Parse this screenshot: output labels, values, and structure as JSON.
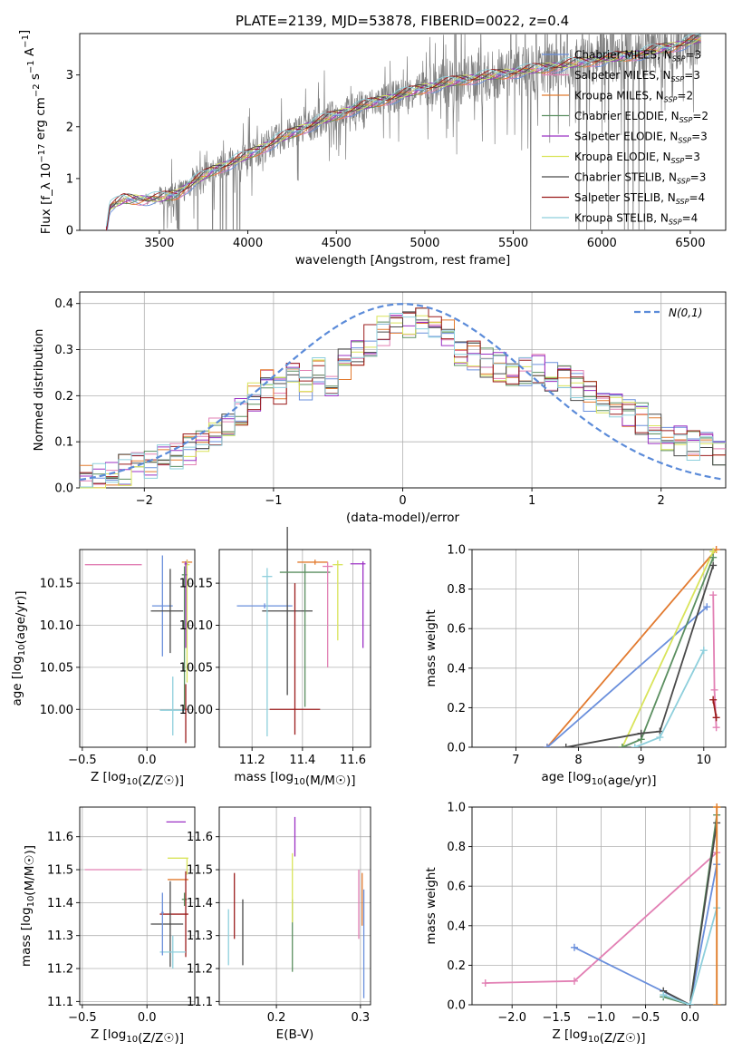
{
  "figure_title": "PLATE=2139, MJD=53878, FIBERID=0022, z=0.4",
  "colors": {
    "Chabrier MILES": "#6a8fdc",
    "Salpeter MILES": "#e280b4",
    "Kroupa MILES": "#e27a2f",
    "Chabrier ELODIE": "#5b8f60",
    "Salpeter ELODIE": "#9b30c4",
    "Kroupa ELODIE": "#d9e45a",
    "Chabrier STELIB": "#4a4a4a",
    "Salpeter STELIB": "#9b1c1c",
    "Kroupa STELIB": "#8ecfdc",
    "data": "#808080"
  },
  "chart_data": [
    {
      "id": "spectrum",
      "type": "line",
      "title": "PLATE=2139, MJD=53878, FIBERID=0022, z=0.4",
      "xlabel": "wavelength [Angstrom, rest frame]",
      "ylabel": "Flux [f_λ 10^-17 erg cm^-2 s^-1 A^-1]",
      "xlim": [
        3050,
        6700
      ],
      "ylim": [
        0,
        3.8
      ],
      "xticks": [
        "3500",
        "4000",
        "4500",
        "5000",
        "5500",
        "6000",
        "6500"
      ],
      "yticks": [
        "0",
        "1",
        "2",
        "3"
      ],
      "grid": false,
      "legend_position": "top-right",
      "legend": [
        {
          "name": "Chabrier MILES",
          "sub": "3"
        },
        {
          "name": "Salpeter MILES",
          "sub": "3"
        },
        {
          "name": "Kroupa MILES",
          "sub": "2"
        },
        {
          "name": "Chabrier ELODIE",
          "sub": "2"
        },
        {
          "name": "Salpeter ELODIE",
          "sub": "3"
        },
        {
          "name": "Kroupa ELODIE",
          "sub": "3"
        },
        {
          "name": "Chabrier STELIB",
          "sub": "3"
        },
        {
          "name": "Salpeter STELIB",
          "sub": "4"
        },
        {
          "name": "Kroupa STELIB",
          "sub": "4"
        }
      ],
      "continuum": [
        [
          3200,
          0.0
        ],
        [
          3220,
          0.45
        ],
        [
          3300,
          0.6
        ],
        [
          3400,
          0.6
        ],
        [
          3500,
          0.62
        ],
        [
          3600,
          0.7
        ],
        [
          3700,
          0.95
        ],
        [
          3800,
          1.15
        ],
        [
          3900,
          1.3
        ],
        [
          4000,
          1.45
        ],
        [
          4200,
          1.8
        ],
        [
          4400,
          2.1
        ],
        [
          4600,
          2.35
        ],
        [
          4800,
          2.55
        ],
        [
          5000,
          2.75
        ],
        [
          5200,
          2.9
        ],
        [
          5400,
          3.0
        ],
        [
          5600,
          3.1
        ],
        [
          5800,
          3.2
        ],
        [
          6000,
          3.3
        ],
        [
          6200,
          3.4
        ],
        [
          6400,
          3.55
        ],
        [
          6550,
          3.7
        ]
      ]
    },
    {
      "id": "residuals",
      "type": "step",
      "xlabel": "(data-model)/error",
      "ylabel": "Normed distribution",
      "xlim": [
        -2.5,
        2.5
      ],
      "ylim": [
        0,
        0.425
      ],
      "xticks": [
        "-2",
        "-1",
        "0",
        "1",
        "2"
      ],
      "yticks": [
        "0.0",
        "0.1",
        "0.2",
        "0.3",
        "0.4"
      ],
      "grid": true,
      "legend_position": "top-right",
      "reference_label": "N(0,1)",
      "bins": [
        -2.5,
        -2.4,
        -2.3,
        -2.2,
        -2.1,
        -2.0,
        -1.9,
        -1.8,
        -1.7,
        -1.6,
        -1.5,
        -1.4,
        -1.3,
        -1.2,
        -1.1,
        -1.0,
        -0.9,
        -0.8,
        -0.7,
        -0.6,
        -0.5,
        -0.4,
        -0.3,
        -0.2,
        -0.1,
        0.0,
        0.1,
        0.2,
        0.3,
        0.4,
        0.5,
        0.6,
        0.7,
        0.8,
        0.9,
        1.0,
        1.1,
        1.2,
        1.3,
        1.4,
        1.5,
        1.6,
        1.7,
        1.8,
        1.9,
        2.0,
        2.1,
        2.2,
        2.3,
        2.4
      ],
      "mean_values": [
        0.02,
        0.025,
        0.03,
        0.04,
        0.045,
        0.05,
        0.06,
        0.07,
        0.085,
        0.1,
        0.12,
        0.14,
        0.17,
        0.2,
        0.23,
        0.21,
        0.24,
        0.22,
        0.25,
        0.22,
        0.27,
        0.3,
        0.32,
        0.34,
        0.35,
        0.36,
        0.37,
        0.35,
        0.33,
        0.3,
        0.29,
        0.27,
        0.26,
        0.24,
        0.25,
        0.26,
        0.24,
        0.23,
        0.22,
        0.2,
        0.19,
        0.18,
        0.16,
        0.15,
        0.13,
        0.11,
        0.1,
        0.09,
        0.085,
        0.08
      ]
    },
    {
      "id": "age-vs-Z",
      "type": "scatter",
      "xlabel": "Z [log10(Z/Z☉)]",
      "ylabel": "age  [log10(age/yr)]",
      "xlim": [
        -0.52,
        0.37
      ],
      "ylim": [
        9.955,
        10.19
      ],
      "xticks": [
        "-0.5",
        "0.0",
        "0.5"
      ],
      "yticks": [
        "10.00",
        "10.05",
        "10.10",
        "10.15"
      ],
      "grid": true,
      "points": [
        {
          "sed": "Salpeter MILES",
          "x": -0.05,
          "xerr": [
            0.43,
            0.01
          ],
          "y": 10.172,
          "yerr": [
            0,
            0
          ]
        },
        {
          "sed": "Chabrier MILES",
          "x": 0.12,
          "xerr": [
            0.08,
            0.08
          ],
          "y": 10.123,
          "yerr": [
            0.06,
            0.06
          ]
        },
        {
          "sed": "Chabrier STELIB",
          "x": 0.18,
          "xerr": [
            0.15,
            0.1
          ],
          "y": 10.117,
          "yerr": [
            0.05,
            0.05
          ]
        },
        {
          "sed": "Kroupa MILES",
          "x": 0.31,
          "xerr": [
            0.04,
            0.04
          ],
          "y": 10.175,
          "yerr": [
            0.003,
            0.003
          ]
        },
        {
          "sed": "Kroupa ELODIE",
          "x": 0.31,
          "xerr": [
            0.02,
            0.02
          ],
          "y": 10.172,
          "yerr": [
            0.14,
            0.005
          ]
        },
        {
          "sed": "Chabrier ELODIE",
          "x": 0.29,
          "xerr": [
            0.02,
            0.02
          ],
          "y": 10.16,
          "yerr": [
            0.16,
            0.01
          ]
        },
        {
          "sed": "Salpeter ELODIE",
          "x": 0.3,
          "xerr": [
            0.01,
            0.01
          ],
          "y": 10.173,
          "yerr": [
            0.1,
            0.003
          ]
        },
        {
          "sed": "Kroupa STELIB",
          "x": 0.2,
          "xerr": [
            0.1,
            0.1
          ],
          "y": 9.999,
          "yerr": [
            0.03,
            0.04
          ]
        },
        {
          "sed": "Salpeter STELIB",
          "x": 0.3,
          "xerr": [
            0.01,
            0.01
          ],
          "y": 10.0,
          "yerr": [
            0.04,
            0.03
          ]
        }
      ]
    },
    {
      "id": "age-vs-mass",
      "type": "scatter",
      "xlabel": "mass [log10(M/M☉)]",
      "ylabel": "",
      "xlim": [
        11.07,
        11.67
      ],
      "ylim": [
        9.955,
        10.19
      ],
      "xticks": [
        "11.2",
        "11.4",
        "11.6"
      ],
      "yticks": [
        "10.00",
        "10.05",
        "10.10",
        "10.15"
      ],
      "grid": true,
      "points": [
        {
          "sed": "Chabrier MILES",
          "x": 11.25,
          "xerr": [
            0.11,
            0.11
          ],
          "y": 10.123,
          "yerr": [
            0.003,
            0.003
          ]
        },
        {
          "sed": "Chabrier STELIB",
          "x": 11.34,
          "xerr": [
            0.1,
            0.1
          ],
          "y": 10.117,
          "yerr": [
            0.1,
            0.1
          ]
        },
        {
          "sed": "Kroupa STELIB",
          "x": 11.26,
          "xerr": [
            0.02,
            0.02
          ],
          "y": 10.158,
          "yerr": [
            0.19,
            0.01
          ]
        },
        {
          "sed": "Chabrier ELODIE",
          "x": 11.41,
          "xerr": [
            0.1,
            0.1
          ],
          "y": 10.163,
          "yerr": [
            0.16,
            0.01
          ]
        },
        {
          "sed": "Salpeter STELIB",
          "x": 11.37,
          "xerr": [
            0.1,
            0.1
          ],
          "y": 10.0,
          "yerr": [
            0.03,
            0.15
          ]
        },
        {
          "sed": "Kroupa MILES",
          "x": 11.45,
          "xerr": [
            0.07,
            0.05
          ],
          "y": 10.175,
          "yerr": [
            0.003,
            0.003
          ]
        },
        {
          "sed": "Salpeter MILES",
          "x": 11.5,
          "xerr": [
            0.02,
            0.02
          ],
          "y": 10.17,
          "yerr": [
            0.12,
            0.005
          ]
        },
        {
          "sed": "Kroupa ELODIE",
          "x": 11.54,
          "xerr": [
            0.02,
            0.02
          ],
          "y": 10.172,
          "yerr": [
            0.09,
            0.005
          ]
        },
        {
          "sed": "Salpeter ELODIE",
          "x": 11.64,
          "xerr": [
            0.05,
            0.01
          ],
          "y": 10.173,
          "yerr": [
            0.1,
            0.003
          ]
        }
      ]
    },
    {
      "id": "mass-weight-vs-age",
      "type": "line",
      "xlabel": "age  [log10(age/yr)]",
      "ylabel": "mass weight",
      "xlim": [
        6.3,
        10.35
      ],
      "ylim": [
        0,
        1.0
      ],
      "xticks": [
        "7",
        "8",
        "9",
        "10"
      ],
      "yticks": [
        "0.0",
        "0.2",
        "0.4",
        "0.6",
        "0.8",
        "1.0"
      ],
      "grid": true,
      "series": [
        {
          "sed": "Kroupa MILES",
          "x": [
            7.5,
            10.2
          ],
          "y": [
            0.0,
            1.0
          ]
        },
        {
          "sed": "Chabrier MILES",
          "x": [
            7.5,
            10.05
          ],
          "y": [
            0.0,
            0.71
          ]
        },
        {
          "sed": "Kroupa ELODIE",
          "x": [
            8.7,
            10.15
          ],
          "y": [
            0.0,
            0.99
          ]
        },
        {
          "sed": "Chabrier ELODIE",
          "x": [
            8.7,
            9.0,
            10.15
          ],
          "y": [
            0.0,
            0.04,
            0.96
          ]
        },
        {
          "sed": "Chabrier STELIB",
          "x": [
            7.8,
            9.0,
            9.3,
            10.15
          ],
          "y": [
            0.0,
            0.07,
            0.08,
            0.92
          ]
        },
        {
          "sed": "Kroupa STELIB",
          "x": [
            8.9,
            9.3,
            10.0
          ],
          "y": [
            0.0,
            0.05,
            0.49
          ]
        },
        {
          "sed": "Salpeter MILES",
          "x": [
            10.15,
            10.17,
            10.2
          ],
          "y": [
            0.77,
            0.29,
            0.1
          ]
        },
        {
          "sed": "Salpeter STELIB",
          "x": [
            10.15,
            10.2
          ],
          "y": [
            0.24,
            0.15
          ]
        }
      ]
    },
    {
      "id": "mass-vs-Z",
      "type": "scatter",
      "xlabel": "Z [log10(Z/Z☉)]",
      "ylabel": "mass [log10(M/M☉)]",
      "xlim": [
        -0.52,
        0.37
      ],
      "ylim": [
        11.09,
        11.69
      ],
      "xticks": [
        "-0.5",
        "0.0",
        "0.5"
      ],
      "yticks": [
        "11.1",
        "11.2",
        "11.3",
        "11.4",
        "11.5",
        "11.6"
      ],
      "grid": true,
      "points": [
        {
          "sed": "Salpeter MILES",
          "x": -0.05,
          "xerr": [
            0.43,
            0.01
          ],
          "y": 11.5,
          "yerr": [
            0,
            0
          ]
        },
        {
          "sed": "Salpeter ELODIE",
          "x": 0.3,
          "xerr": [
            0.15,
            0.0
          ],
          "y": 11.645,
          "yerr": [
            0.0,
            0.0
          ]
        },
        {
          "sed": "Kroupa ELODIE",
          "x": 0.31,
          "xerr": [
            0.15,
            0.01
          ],
          "y": 11.535,
          "yerr": [
            0.05,
            0.0
          ]
        },
        {
          "sed": "Kroupa MILES",
          "x": 0.3,
          "xerr": [
            0.14,
            0.02
          ],
          "y": 11.47,
          "yerr": [
            0.0,
            0.0
          ]
        },
        {
          "sed": "Chabrier ELODIE",
          "x": 0.29,
          "xerr": [
            0.02,
            0.02
          ],
          "y": 11.41,
          "yerr": [
            0.02,
            0.02
          ]
        },
        {
          "sed": "Salpeter STELIB",
          "x": 0.3,
          "xerr": [
            0.2,
            0.02
          ],
          "y": 11.365,
          "yerr": [
            0.13,
            0.13
          ]
        },
        {
          "sed": "Chabrier STELIB",
          "x": 0.18,
          "xerr": [
            0.15,
            0.1
          ],
          "y": 11.335,
          "yerr": [
            0.13,
            0.13
          ]
        },
        {
          "sed": "Kroupa STELIB",
          "x": 0.2,
          "xerr": [
            0.1,
            0.1
          ],
          "y": 11.25,
          "yerr": [
            0.05,
            0.05
          ]
        },
        {
          "sed": "Chabrier MILES",
          "x": 0.12,
          "xerr": [
            0.01,
            0.01
          ],
          "y": 11.37,
          "yerr": [
            0.13,
            0.06
          ]
        }
      ]
    },
    {
      "id": "mass-vs-EBV",
      "type": "scatter",
      "xlabel": "E(B-V)",
      "ylabel": "",
      "xlim": [
        0.132,
        0.312
      ],
      "ylim": [
        11.09,
        11.69
      ],
      "xticks": [
        "0.2",
        "0.3"
      ],
      "yticks": [
        "11.1",
        "11.2",
        "11.3",
        "11.4",
        "11.5",
        "11.6"
      ],
      "grid": true,
      "points": [
        {
          "sed": "Kroupa STELIB",
          "x": 0.143,
          "y": 11.3,
          "yerr": [
            0.09,
            0.08
          ]
        },
        {
          "sed": "Salpeter STELIB",
          "x": 0.15,
          "y": 11.37,
          "yerr": [
            0.08,
            0.12
          ]
        },
        {
          "sed": "Chabrier STELIB",
          "x": 0.16,
          "y": 11.3,
          "yerr": [
            0.09,
            0.11
          ]
        },
        {
          "sed": "Chabrier ELODIE",
          "x": 0.219,
          "y": 11.31,
          "yerr": [
            0.12,
            0.1
          ]
        },
        {
          "sed": "Kroupa ELODIE",
          "x": 0.219,
          "y": 11.44,
          "yerr": [
            0.1,
            0.11
          ]
        },
        {
          "sed": "Salpeter ELODIE",
          "x": 0.222,
          "y": 11.6,
          "yerr": [
            0.06,
            0.06
          ]
        },
        {
          "sed": "Salpeter MILES",
          "x": 0.298,
          "y": 11.37,
          "yerr": [
            0.08,
            0.13
          ]
        },
        {
          "sed": "Kroupa MILES",
          "x": 0.302,
          "y": 11.41,
          "yerr": [
            0.08,
            0.08
          ]
        },
        {
          "sed": "Chabrier MILES",
          "x": 0.304,
          "y": 11.27,
          "yerr": [
            0.16,
            0.17
          ]
        }
      ]
    },
    {
      "id": "mass-weight-vs-Z",
      "type": "line",
      "xlabel": "Z [log10(Z/Z☉)]",
      "ylabel": "mass weight",
      "xlim": [
        -2.45,
        0.4
      ],
      "ylim": [
        0,
        1.0
      ],
      "xticks": [
        "-2.0",
        "-1.5",
        "-1.0",
        "-0.5",
        "0.0"
      ],
      "yticks": [
        "0.0",
        "0.2",
        "0.4",
        "0.6",
        "0.8",
        "1.0"
      ],
      "grid": true,
      "series": [
        {
          "sed": "Salpeter MILES",
          "x": [
            -2.3,
            -1.3,
            0.3
          ],
          "y": [
            0.11,
            0.12,
            0.77
          ]
        },
        {
          "sed": "Chabrier MILES",
          "x": [
            -1.3,
            0.0,
            0.3
          ],
          "y": [
            0.29,
            0.0,
            0.71
          ]
        },
        {
          "sed": "Chabrier ELODIE",
          "x": [
            -0.3,
            0.0,
            0.3
          ],
          "y": [
            0.04,
            0.0,
            0.96
          ]
        },
        {
          "sed": "Chabrier STELIB",
          "x": [
            -0.3,
            0.0,
            0.3
          ],
          "y": [
            0.07,
            0.0,
            0.92
          ]
        },
        {
          "sed": "Kroupa STELIB",
          "x": [
            -0.3,
            0.0,
            0.3
          ],
          "y": [
            0.05,
            0.0,
            0.49
          ]
        },
        {
          "sed": "Kroupa ELODIE",
          "x": [
            0.3,
            0.3
          ],
          "y": [
            0.0,
            1.0
          ]
        },
        {
          "sed": "Kroupa MILES",
          "x": [
            0.3,
            0.3
          ],
          "y": [
            0.0,
            1.0
          ]
        }
      ]
    }
  ]
}
